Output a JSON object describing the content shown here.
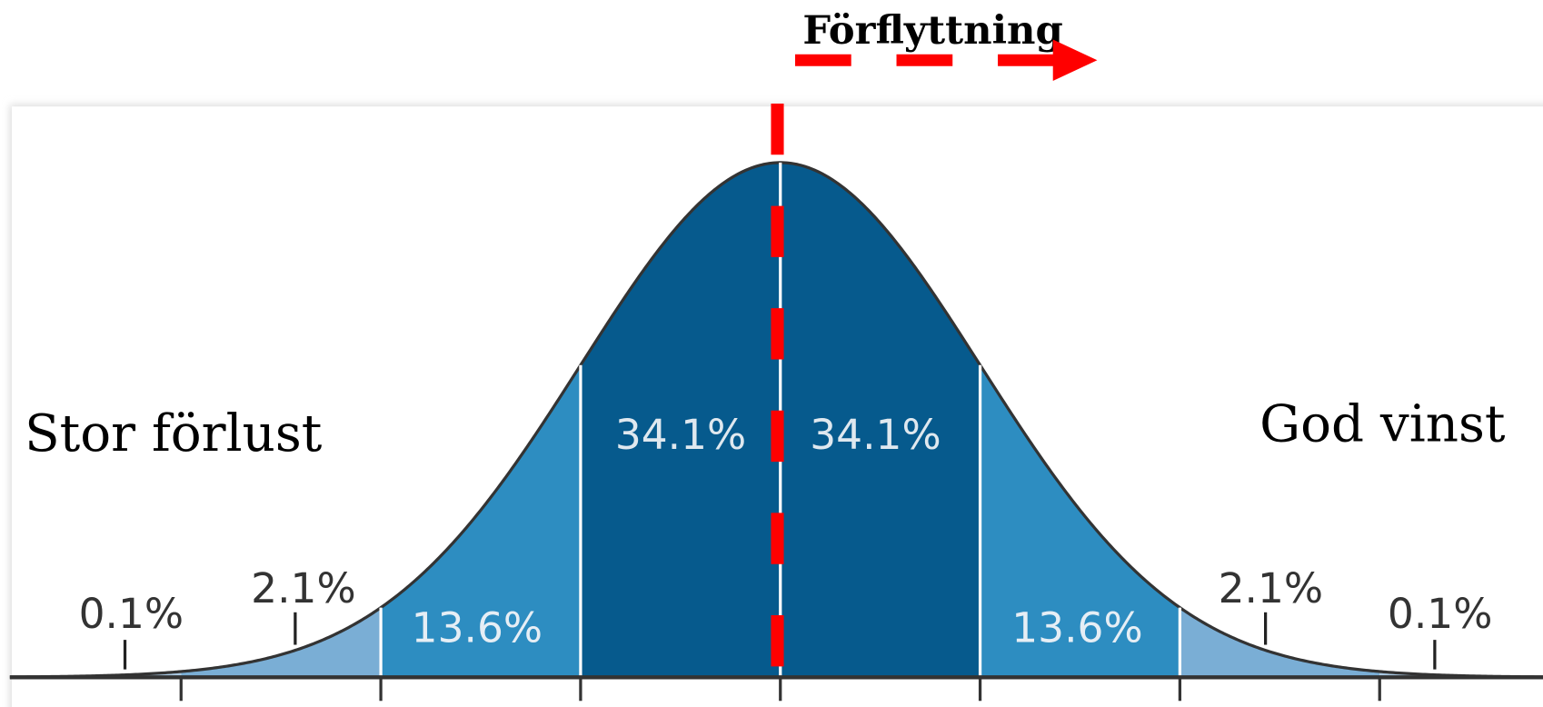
{
  "shift_label": "Förflyttning",
  "left_label": "Stor förlust",
  "right_label": "God vinst",
  "percent_labels": [
    "0.1%",
    "2.1%",
    "13.6%",
    "34.1%",
    "34.1%",
    "13.6%",
    "2.1%",
    "0.1%"
  ]
}
